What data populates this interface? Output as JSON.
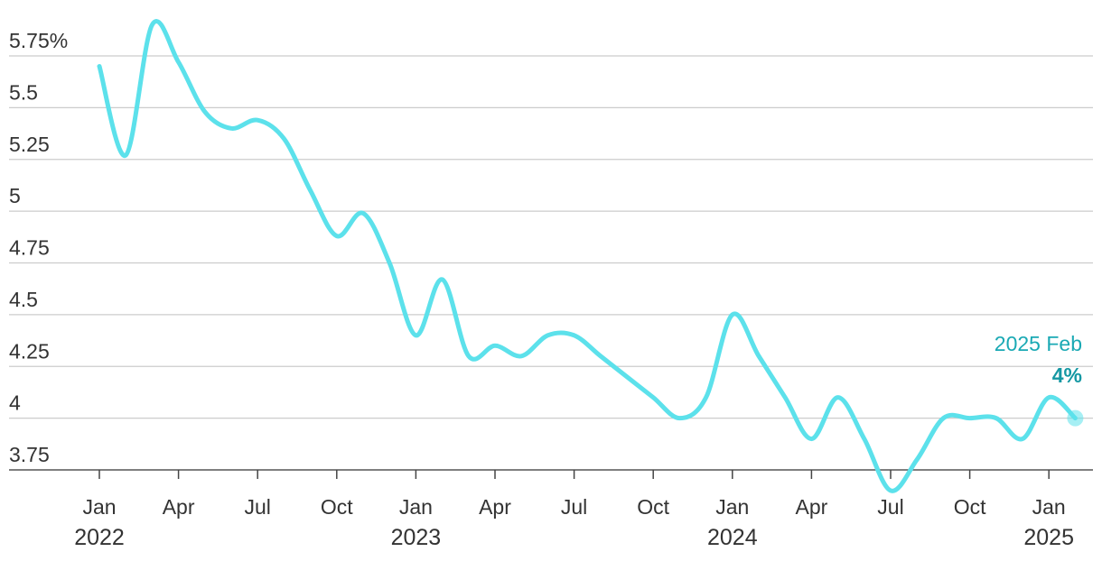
{
  "chart_data": {
    "type": "line",
    "title": "",
    "xlabel": "",
    "ylabel": "",
    "ylim": [
      3.75,
      5.75
    ],
    "grid": true,
    "y_ticks": [
      {
        "value": 5.75,
        "label": "5.75%"
      },
      {
        "value": 5.5,
        "label": "5.5"
      },
      {
        "value": 5.25,
        "label": "5.25"
      },
      {
        "value": 5,
        "label": "5"
      },
      {
        "value": 4.75,
        "label": "4.75"
      },
      {
        "value": 4.5,
        "label": "4.5"
      },
      {
        "value": 4.25,
        "label": "4.25"
      },
      {
        "value": 4,
        "label": "4"
      },
      {
        "value": 3.75,
        "label": "3.75"
      }
    ],
    "x_ticks": [
      {
        "date": "2022-01",
        "label": "Jan",
        "year": "2022"
      },
      {
        "date": "2022-04",
        "label": "Apr"
      },
      {
        "date": "2022-07",
        "label": "Jul"
      },
      {
        "date": "2022-10",
        "label": "Oct"
      },
      {
        "date": "2023-01",
        "label": "Jan",
        "year": "2023"
      },
      {
        "date": "2023-04",
        "label": "Apr"
      },
      {
        "date": "2023-07",
        "label": "Jul"
      },
      {
        "date": "2023-10",
        "label": "Oct"
      },
      {
        "date": "2024-01",
        "label": "Jan",
        "year": "2024"
      },
      {
        "date": "2024-04",
        "label": "Apr"
      },
      {
        "date": "2024-07",
        "label": "Jul"
      },
      {
        "date": "2024-10",
        "label": "Oct"
      },
      {
        "date": "2025-01",
        "label": "Jan",
        "year": "2025"
      }
    ],
    "series": [
      {
        "color": "#5ce1eb",
        "x": [
          "2022-01",
          "2022-02",
          "2022-03",
          "2022-04",
          "2022-05",
          "2022-06",
          "2022-07",
          "2022-08",
          "2022-09",
          "2022-10",
          "2022-11",
          "2022-12",
          "2023-01",
          "2023-02",
          "2023-03",
          "2023-04",
          "2023-05",
          "2023-06",
          "2023-07",
          "2023-08",
          "2023-09",
          "2023-10",
          "2023-11",
          "2023-12",
          "2024-01",
          "2024-02",
          "2024-03",
          "2024-04",
          "2024-05",
          "2024-06",
          "2024-07",
          "2024-08",
          "2024-09",
          "2024-10",
          "2024-11",
          "2024-12",
          "2025-01",
          "2025-02"
        ],
        "values": [
          5.7,
          5.27,
          5.9,
          5.72,
          5.48,
          5.4,
          5.44,
          5.35,
          5.1,
          4.88,
          4.99,
          4.75,
          4.4,
          4.67,
          4.3,
          4.35,
          4.3,
          4.4,
          4.4,
          4.3,
          4.2,
          4.1,
          4.0,
          4.1,
          4.5,
          4.3,
          4.1,
          3.9,
          4.1,
          3.9,
          3.65,
          3.8,
          4.0,
          4.0,
          4.0,
          3.9,
          4.1,
          4.0
        ]
      }
    ],
    "annotation": {
      "label": "2025 Feb",
      "value": "4%",
      "label_color": "#1aa9b4",
      "value_color": "#1598a3"
    }
  }
}
